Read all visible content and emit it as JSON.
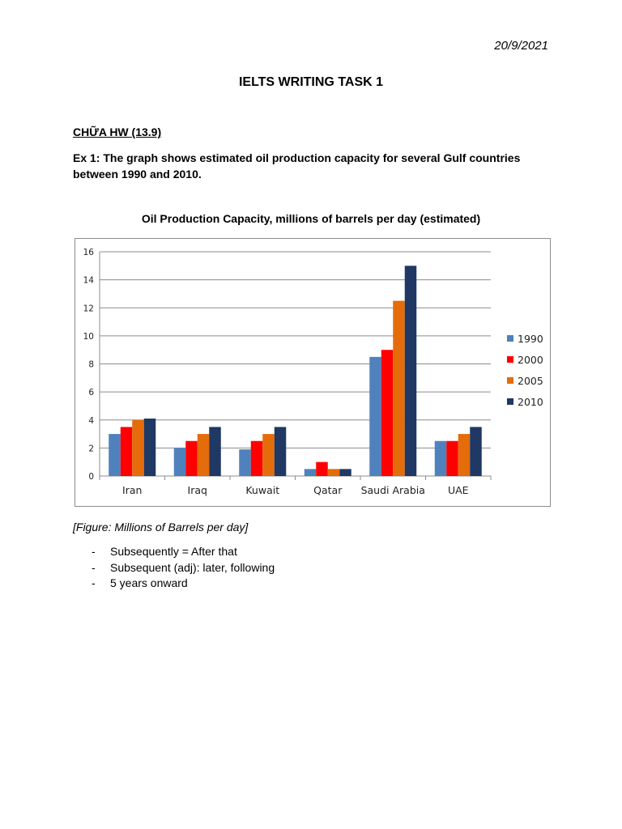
{
  "header": {
    "date": "20/9/2021",
    "title": "IELTS WRITING TASK 1"
  },
  "section": {
    "heading": "CHỮA HW (13.9)",
    "exercise": "Ex 1: The graph shows estimated oil production capacity for several Gulf countries between 1990 and 2010."
  },
  "chart_data": {
    "type": "bar",
    "title": "Oil Production Capacity, millions of barrels per day (estimated)",
    "categories": [
      "Iran",
      "Iraq",
      "Kuwait",
      "Qatar",
      "Saudi Arabia",
      "UAE"
    ],
    "series": [
      {
        "name": "1990",
        "color": "#4f81bd",
        "values": [
          3,
          2,
          1.9,
          0.5,
          8.5,
          2.5
        ]
      },
      {
        "name": "2000",
        "color": "#ff0000",
        "values": [
          3.5,
          2.5,
          2.5,
          1,
          9,
          2.5
        ]
      },
      {
        "name": "2005",
        "color": "#e46c0a",
        "values": [
          4,
          3,
          3,
          0.5,
          12.5,
          3
        ]
      },
      {
        "name": "2010",
        "color": "#1f3864",
        "values": [
          4.1,
          3.5,
          3.5,
          0.5,
          15,
          3.5
        ]
      }
    ],
    "ylim": [
      0,
      16
    ],
    "yticks": [
      0,
      2,
      4,
      6,
      8,
      10,
      12,
      14,
      16
    ],
    "xlabel": "",
    "ylabel": "",
    "grid": true,
    "legend_position": "right"
  },
  "figure": {
    "caption": "[Figure: Millions of Barrels per day]"
  },
  "notes": {
    "dash": "-",
    "items": [
      "Subsequently = After that",
      "Subsequent (adj): later, following",
      "5 years onward"
    ]
  }
}
